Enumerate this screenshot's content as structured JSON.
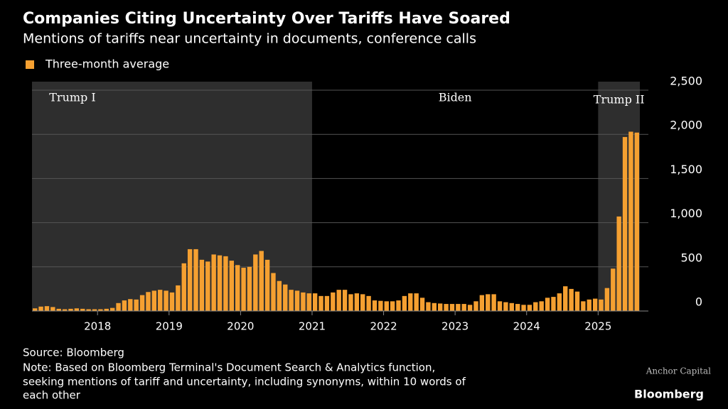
{
  "chart_data": {
    "type": "bar",
    "title": "Companies Citing Uncertainty Over Tariffs Have Soared",
    "subtitle": "Mentions of tariffs near uncertainty in documents, conference calls",
    "legend": "Three-month average",
    "color": "#f5a031",
    "categories": [
      null,
      null,
      null,
      null,
      null,
      null,
      null,
      null,
      null,
      null,
      null,
      "2018",
      null,
      null,
      null,
      null,
      null,
      null,
      null,
      null,
      null,
      null,
      null,
      "2019",
      null,
      null,
      null,
      null,
      null,
      null,
      null,
      null,
      null,
      null,
      null,
      "2020",
      null,
      null,
      null,
      null,
      null,
      null,
      null,
      null,
      null,
      null,
      null,
      "2021",
      null,
      null,
      null,
      null,
      null,
      null,
      null,
      null,
      null,
      null,
      null,
      "2022",
      null,
      null,
      null,
      null,
      null,
      null,
      null,
      null,
      null,
      null,
      null,
      "2023",
      null,
      null,
      null,
      null,
      null,
      null,
      null,
      null,
      null,
      null,
      null,
      "2024",
      null,
      null,
      null,
      null,
      null,
      null,
      null,
      null,
      null,
      null,
      null,
      "2025",
      null,
      null,
      null,
      null,
      null,
      null
    ],
    "values": [
      30,
      50,
      55,
      45,
      25,
      20,
      25,
      30,
      25,
      20,
      20,
      20,
      25,
      35,
      90,
      120,
      135,
      130,
      180,
      215,
      230,
      240,
      230,
      210,
      290,
      540,
      700,
      700,
      580,
      560,
      640,
      630,
      620,
      570,
      520,
      490,
      500,
      640,
      680,
      580,
      430,
      340,
      300,
      240,
      230,
      210,
      200,
      200,
      170,
      170,
      210,
      240,
      240,
      190,
      200,
      190,
      170,
      120,
      115,
      110,
      110,
      120,
      170,
      200,
      200,
      150,
      100,
      90,
      85,
      80,
      80,
      80,
      80,
      70,
      110,
      180,
      190,
      190,
      110,
      100,
      90,
      80,
      70,
      70,
      100,
      110,
      150,
      160,
      200,
      280,
      250,
      220,
      110,
      130,
      140,
      130,
      260,
      480,
      1070,
      1970,
      2030,
      2020
    ],
    "ylim": [
      0,
      2500
    ],
    "yticks": [
      0,
      500,
      {
        "value": 1000,
        "label": "1,000"
      },
      {
        "value": 1500,
        "label": "1,500"
      },
      {
        "value": 2000,
        "label": "2,000"
      },
      {
        "value": 2500,
        "label": "2,500"
      }
    ],
    "grid": true,
    "periods": [
      {
        "label": "Trump I",
        "start": 0,
        "end": 46,
        "shaded": true
      },
      {
        "label": "Biden",
        "start": 47,
        "end": 94,
        "shaded": false
      },
      {
        "label": "Trump II",
        "start": 95,
        "end": 101,
        "shaded": true
      }
    ],
    "source": "Source: Bloomberg",
    "note": [
      "Note: Based on Bloomberg Terminal's Document Search & Analytics function,",
      "seeking mentions of tariff and uncertainty, including synonyms, within 10 words of",
      "each other"
    ],
    "watermark": "Anchor Capital",
    "brand": "Bloomberg"
  }
}
